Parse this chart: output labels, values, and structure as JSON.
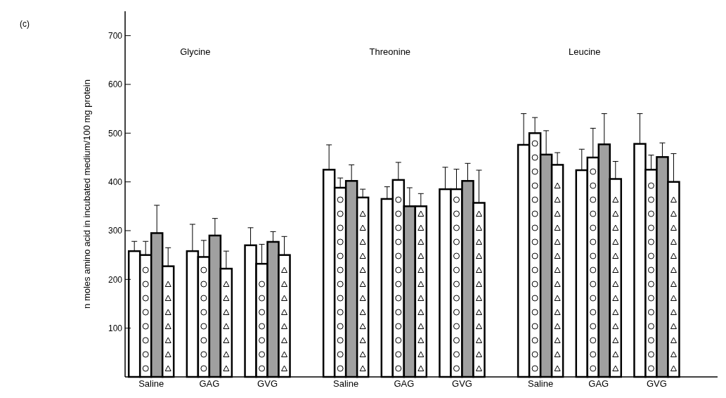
{
  "chart_data": {
    "type": "bar",
    "ylabel": "n moles  amino acid in incubated medium/100 mg protein",
    "categories": [
      "Saline",
      "GAG",
      "GVG",
      "Saline",
      "GAG",
      "GVG",
      "Saline",
      "GAG",
      "GVG"
    ],
    "series": [
      {
        "color": "#ffffff",
        "values": [
          258,
          258,
          270,
          425,
          365,
          385,
          476,
          424,
          478
        ],
        "errors": [
          [
            258,
            278
          ],
          [
            258,
            313
          ],
          [
            270,
            306
          ],
          [
            425,
            476
          ],
          [
            365,
            390
          ],
          [
            385,
            430
          ],
          [
            476,
            540
          ],
          [
            424,
            467
          ],
          [
            478,
            540
          ]
        ]
      },
      {
        "color": "#ffffff",
        "values": [
          250,
          246,
          232,
          388,
          404,
          385,
          500,
          450,
          425
        ],
        "errors": [
          [
            250,
            278
          ],
          [
            246,
            280
          ],
          [
            232,
            272
          ],
          [
            388,
            408
          ],
          [
            404,
            440
          ],
          [
            385,
            426
          ],
          [
            500,
            532
          ],
          [
            450,
            510
          ],
          [
            425,
            455
          ]
        ]
      },
      {
        "color": "#a0a0a0",
        "values": [
          295,
          290,
          277,
          402,
          350,
          402,
          456,
          477,
          451
        ],
        "errors": [
          [
            295,
            352
          ],
          [
            290,
            325
          ],
          [
            277,
            298
          ],
          [
            402,
            435
          ],
          [
            350,
            388
          ],
          [
            402,
            438
          ],
          [
            456,
            505
          ],
          [
            477,
            540
          ],
          [
            451,
            480
          ]
        ]
      },
      {
        "color": "#ffffff",
        "values": [
          227,
          222,
          250,
          368,
          350,
          357,
          435,
          406,
          400
        ],
        "errors": [
          [
            227,
            265
          ],
          [
            222,
            258
          ],
          [
            250,
            288
          ],
          [
            368,
            385
          ],
          [
            350,
            376
          ],
          [
            357,
            424
          ],
          [
            435,
            460
          ],
          [
            406,
            442
          ],
          [
            400,
            458
          ]
        ]
      }
    ],
    "annotations": [
      "(c)",
      "Glycine",
      "Threonine",
      "Leucine"
    ],
    "ylim": [
      0,
      750
    ],
    "yticks": [
      100,
      200,
      300,
      400,
      500,
      600,
      700
    ],
    "grid": false
  }
}
